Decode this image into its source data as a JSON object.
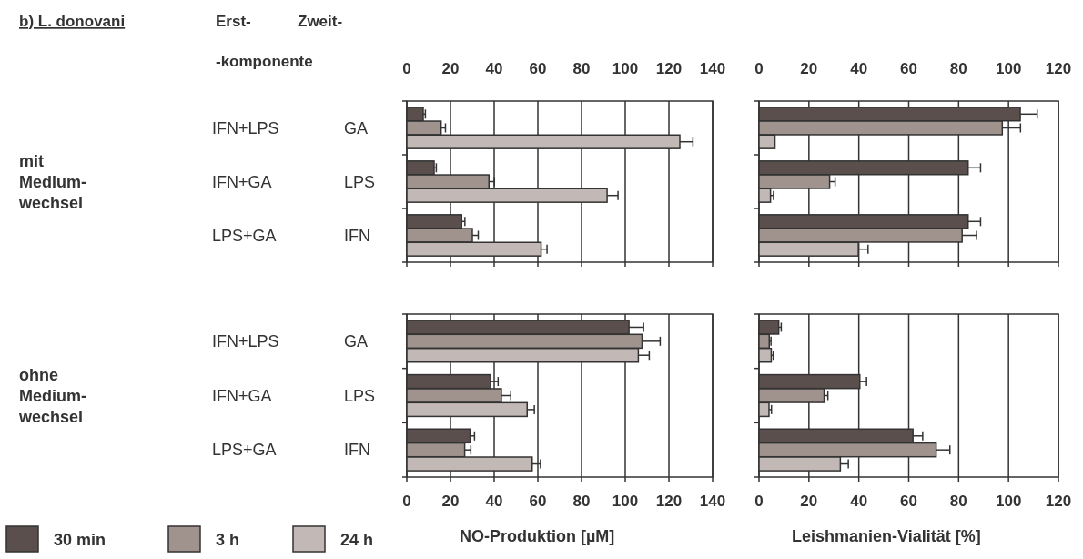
{
  "chart_data": [
    {
      "type": "bar",
      "orientation": "horizontal",
      "annotations": [
        "b) L. donovani",
        "Erst-",
        "Zweit-",
        "-komponente"
      ],
      "ylabel": "mit Medium-wechsel",
      "categories": [
        "IFN+LPS GA",
        "IFN+GA LPS",
        "LPS+GA IFN"
      ],
      "xlim": [
        0,
        140
      ],
      "xticks": [
        0,
        20,
        40,
        60,
        80,
        100,
        120,
        140
      ],
      "grid": "x",
      "series": [
        {
          "color": "#5a4f4c",
          "values": [
            7.5,
            12.5,
            25.1
          ],
          "errors": [
            1,
            1,
            1.5
          ]
        },
        {
          "color": "#a0938e",
          "values": [
            15.7,
            37.6,
            30
          ],
          "errors": [
            2,
            2.5,
            2.7
          ]
        },
        {
          "color": "#c2b8b5",
          "values": [
            125,
            91.7,
            61.5
          ],
          "errors": [
            6,
            5,
            2.7
          ]
        }
      ]
    },
    {
      "type": "bar",
      "orientation": "horizontal",
      "categories": [
        null,
        null,
        null
      ],
      "xlim": [
        0,
        120
      ],
      "xticks": [
        0,
        20,
        40,
        60,
        80,
        100,
        120
      ],
      "grid": "x",
      "series": [
        {
          "color": "#5a4f4c",
          "values": [
            104.7,
            83.8,
            83.8
          ],
          "errors": [
            6.8,
            5,
            5
          ]
        },
        {
          "color": "#a0938e",
          "values": [
            97.5,
            28.3,
            81.4
          ],
          "errors": [
            7.3,
            2.2,
            5.8
          ]
        },
        {
          "color": "#c2b8b5",
          "values": [
            6.4,
            4.6,
            39.8
          ],
          "errors": [
            null,
            1.2,
            3.9
          ]
        }
      ]
    },
    {
      "type": "bar",
      "orientation": "horizontal",
      "ylabel": "ohne Medium-wechsel",
      "xlabel": "NO-Produktion [µM]",
      "categories": [
        "IFN+LPS GA",
        "IFN+GA LPS",
        "LPS+GA IFN"
      ],
      "xlim": [
        0,
        140
      ],
      "xticks": [
        0,
        20,
        40,
        60,
        80,
        100,
        120,
        140
      ],
      "grid": "x",
      "legend": "bottom",
      "series": [
        {
          "name": "30 min",
          "color": "#5a4f4c",
          "values": [
            101.7,
            38.4,
            29
          ],
          "errors": [
            6.7,
            3.4,
            2
          ]
        },
        {
          "name": "3 h",
          "color": "#a0938e",
          "values": [
            107.7,
            43.3,
            26.5
          ],
          "errors": [
            8.3,
            4.3,
            2.8
          ]
        },
        {
          "name": "24 h",
          "color": "#c2b8b5",
          "values": [
            106,
            55.1,
            57.4
          ],
          "errors": [
            5,
            3.3,
            3.8
          ]
        }
      ]
    },
    {
      "type": "bar",
      "orientation": "horizontal",
      "xlabel": "Leishmanien-Vialität [%]",
      "categories": [
        null,
        null,
        null
      ],
      "xlim": [
        0,
        120
      ],
      "xticks": [
        0,
        20,
        40,
        60,
        80,
        100,
        120
      ],
      "grid": "x",
      "series": [
        {
          "color": "#5a4f4c",
          "values": [
            7.9,
            40.4,
            61.7
          ],
          "errors": [
            1,
            2.7,
            3.9
          ]
        },
        {
          "color": "#a0938e",
          "values": [
            4.1,
            26.1,
            71
          ],
          "errors": [
            0.7,
            1.5,
            5.5
          ]
        },
        {
          "color": "#c2b8b5",
          "values": [
            4.9,
            4,
            32.6
          ],
          "errors": [
            0.8,
            1,
            3.2
          ]
        }
      ]
    }
  ]
}
